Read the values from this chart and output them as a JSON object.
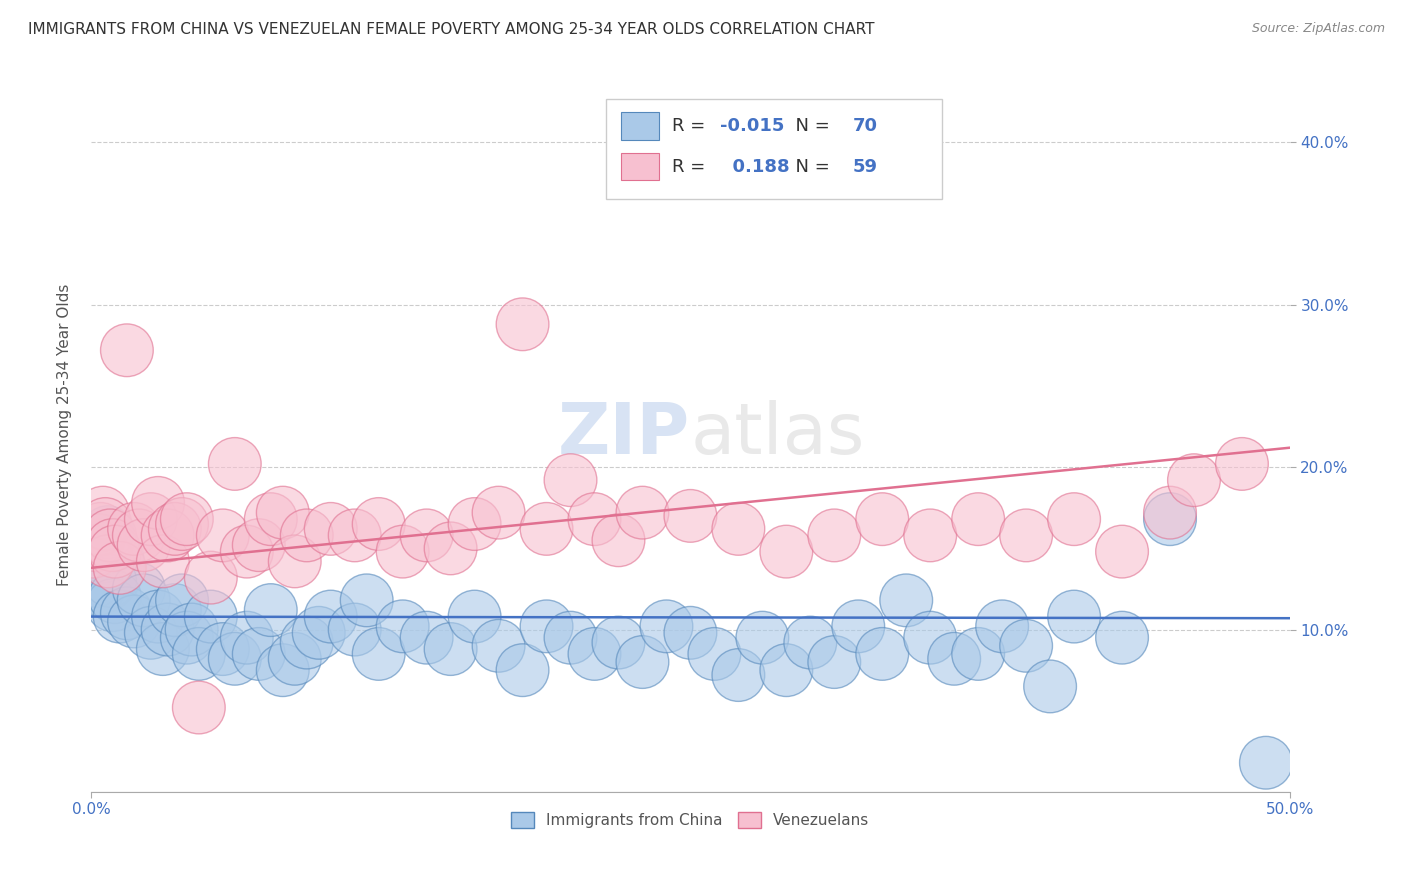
{
  "title": "IMMIGRANTS FROM CHINA VS VENEZUELAN FEMALE POVERTY AMONG 25-34 YEAR OLDS CORRELATION CHART",
  "source": "Source: ZipAtlas.com",
  "ylabel": "Female Poverty Among 25-34 Year Olds",
  "xlim": [
    0.0,
    0.5
  ],
  "ylim": [
    0.0,
    0.44
  ],
  "xticks": [
    0.0,
    0.5
  ],
  "xticklabels": [
    "0.0%",
    "50.0%"
  ],
  "yticks_right": [
    0.1,
    0.2,
    0.3,
    0.4
  ],
  "yticklabels_right": [
    "10.0%",
    "20.0%",
    "30.0%",
    "40.0%"
  ],
  "grid_yticks": [
    0.1,
    0.2,
    0.3,
    0.4
  ],
  "grid_color": "#cccccc",
  "background_color": "#ffffff",
  "watermark": "ZIPatlas",
  "china_color": "#aac9e8",
  "china_edge_color": "#5588bb",
  "venezuela_color": "#f7c0d0",
  "venezuela_edge_color": "#e07090",
  "china_R": -0.015,
  "china_N": 70,
  "venezuela_R": 0.188,
  "venezuela_N": 59,
  "legend_label_china": "Immigrants from China",
  "legend_label_venezuela": "Venezuelans",
  "china_line_color": "#4472c4",
  "venezuela_line_color": "#e07090",
  "china_line_y_start": 0.108,
  "china_line_y_end": 0.107,
  "venezuela_line_y_start": 0.138,
  "venezuela_line_y_end": 0.212,
  "china_scatter_x": [
    0.001,
    0.002,
    0.003,
    0.004,
    0.005,
    0.006,
    0.007,
    0.008,
    0.009,
    0.01,
    0.012,
    0.015,
    0.018,
    0.02,
    0.022,
    0.025,
    0.028,
    0.03,
    0.032,
    0.035,
    0.038,
    0.04,
    0.042,
    0.045,
    0.05,
    0.055,
    0.06,
    0.065,
    0.07,
    0.075,
    0.08,
    0.085,
    0.09,
    0.095,
    0.1,
    0.11,
    0.115,
    0.12,
    0.13,
    0.14,
    0.15,
    0.16,
    0.17,
    0.18,
    0.19,
    0.2,
    0.21,
    0.22,
    0.23,
    0.24,
    0.25,
    0.26,
    0.27,
    0.28,
    0.29,
    0.3,
    0.31,
    0.32,
    0.33,
    0.34,
    0.35,
    0.36,
    0.37,
    0.38,
    0.39,
    0.4,
    0.41,
    0.43,
    0.45,
    0.49
  ],
  "china_scatter_y": [
    0.14,
    0.13,
    0.125,
    0.155,
    0.145,
    0.15,
    0.16,
    0.13,
    0.115,
    0.12,
    0.108,
    0.11,
    0.105,
    0.125,
    0.118,
    0.098,
    0.108,
    0.088,
    0.1,
    0.112,
    0.118,
    0.095,
    0.1,
    0.085,
    0.108,
    0.088,
    0.082,
    0.095,
    0.085,
    0.112,
    0.075,
    0.082,
    0.092,
    0.098,
    0.108,
    0.1,
    0.118,
    0.085,
    0.102,
    0.095,
    0.088,
    0.108,
    0.09,
    0.075,
    0.102,
    0.095,
    0.085,
    0.092,
    0.08,
    0.102,
    0.098,
    0.085,
    0.072,
    0.095,
    0.075,
    0.092,
    0.08,
    0.102,
    0.085,
    0.118,
    0.095,
    0.082,
    0.085,
    0.102,
    0.09,
    0.065,
    0.108,
    0.095,
    0.168,
    0.018
  ],
  "china_scatter_size": [
    300,
    80,
    80,
    80,
    80,
    80,
    80,
    80,
    80,
    80,
    80,
    80,
    80,
    80,
    80,
    80,
    80,
    80,
    80,
    80,
    80,
    80,
    80,
    80,
    80,
    80,
    80,
    80,
    80,
    80,
    80,
    80,
    80,
    80,
    80,
    80,
    80,
    80,
    80,
    80,
    80,
    80,
    80,
    80,
    80,
    80,
    80,
    80,
    80,
    80,
    80,
    80,
    80,
    80,
    80,
    80,
    80,
    80,
    80,
    80,
    80,
    80,
    80,
    80,
    80,
    80,
    80,
    80,
    80,
    80
  ],
  "venezuela_scatter_x": [
    0.001,
    0.002,
    0.003,
    0.004,
    0.005,
    0.006,
    0.007,
    0.008,
    0.009,
    0.01,
    0.012,
    0.015,
    0.018,
    0.02,
    0.022,
    0.025,
    0.028,
    0.03,
    0.032,
    0.035,
    0.038,
    0.04,
    0.045,
    0.05,
    0.055,
    0.06,
    0.065,
    0.07,
    0.075,
    0.08,
    0.085,
    0.09,
    0.1,
    0.11,
    0.12,
    0.13,
    0.14,
    0.15,
    0.16,
    0.17,
    0.18,
    0.19,
    0.2,
    0.21,
    0.22,
    0.23,
    0.25,
    0.27,
    0.29,
    0.31,
    0.33,
    0.35,
    0.37,
    0.39,
    0.41,
    0.43,
    0.45,
    0.46,
    0.48
  ],
  "venezuela_scatter_y": [
    0.148,
    0.152,
    0.155,
    0.162,
    0.172,
    0.165,
    0.142,
    0.158,
    0.152,
    0.148,
    0.138,
    0.272,
    0.162,
    0.158,
    0.152,
    0.168,
    0.178,
    0.142,
    0.158,
    0.162,
    0.165,
    0.168,
    0.052,
    0.132,
    0.158,
    0.202,
    0.148,
    0.152,
    0.168,
    0.172,
    0.142,
    0.158,
    0.162,
    0.158,
    0.165,
    0.148,
    0.158,
    0.15,
    0.165,
    0.172,
    0.288,
    0.162,
    0.192,
    0.168,
    0.155,
    0.172,
    0.17,
    0.162,
    0.148,
    0.158,
    0.168,
    0.158,
    0.168,
    0.158,
    0.168,
    0.148,
    0.172,
    0.192,
    0.202
  ],
  "venezuela_scatter_size": [
    80,
    80,
    80,
    80,
    80,
    80,
    80,
    80,
    80,
    80,
    80,
    80,
    80,
    80,
    80,
    80,
    80,
    80,
    80,
    80,
    80,
    80,
    80,
    80,
    80,
    80,
    80,
    80,
    80,
    80,
    80,
    80,
    80,
    80,
    80,
    80,
    80,
    80,
    80,
    80,
    80,
    80,
    80,
    80,
    80,
    80,
    80,
    80,
    80,
    80,
    80,
    80,
    80,
    80,
    80,
    80,
    80,
    80,
    80
  ]
}
